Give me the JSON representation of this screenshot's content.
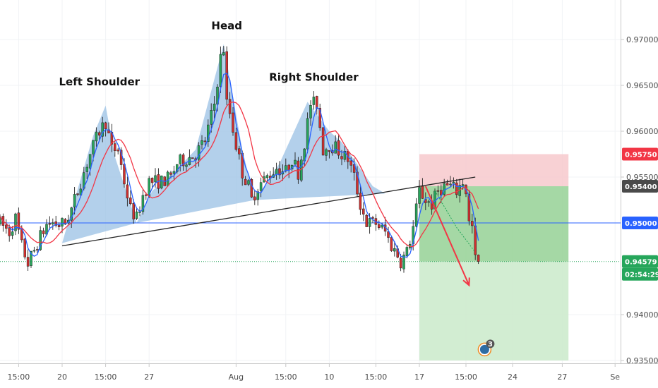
{
  "chart_data": {
    "type": "candlestick",
    "y_axis": {
      "range": [
        0.9348,
        0.9715
      ],
      "ticks": [
        {
          "value": 0.97,
          "label": "0.97000"
        },
        {
          "value": 0.965,
          "label": "0.96500"
        },
        {
          "value": 0.96,
          "label": "0.96000"
        },
        {
          "value": 0.955,
          "label": "0.95500"
        },
        {
          "value": 0.94,
          "label": "0.94000"
        },
        {
          "value": 0.935,
          "label": "0.93500"
        }
      ]
    },
    "x_axis": {
      "range": [
        0,
        200
      ],
      "ticks": [
        {
          "x": 6,
          "label": "15:00"
        },
        {
          "x": 20,
          "label": "20"
        },
        {
          "x": 34,
          "label": "15:00"
        },
        {
          "x": 48,
          "label": "27"
        },
        {
          "x": 76,
          "label": "Aug"
        },
        {
          "x": 92,
          "label": "15:00"
        },
        {
          "x": 106,
          "label": "10"
        },
        {
          "x": 121,
          "label": "15:00"
        },
        {
          "x": 135,
          "label": "17"
        },
        {
          "x": 150,
          "label": "15:00"
        },
        {
          "x": 165,
          "label": "24"
        },
        {
          "x": 181,
          "label": "27"
        },
        {
          "x": 198,
          "label": "Se"
        }
      ]
    },
    "price_badges": [
      {
        "value": 0.9575,
        "label": "0.95750",
        "color": "#f23645"
      },
      {
        "value": 0.954,
        "label": "0.95400",
        "color": "#4a4a4a"
      },
      {
        "value": 0.95,
        "label": "0.95000",
        "color": "#2962ff"
      },
      {
        "value": 0.94579,
        "label": "0.94579",
        "color": "#26a65b",
        "sublabel": "02:54:29"
      }
    ],
    "levels": {
      "support": 0.95,
      "current": 0.94579
    },
    "position": {
      "x_start": 135,
      "x_end": 183,
      "entry": 0.954,
      "stop": 0.9575,
      "target": 0.935,
      "fill_to": 0.94579,
      "colors": {
        "stop_zone": "#f7c9cc",
        "profit_zone": "#9bd49b",
        "profit_zone_light": "#cdebcd"
      }
    },
    "pattern": {
      "color": "#9dc3e6",
      "neckline": {
        "x0": 20,
        "y0": 0.9475,
        "x1": 153,
        "y1": 0.955
      },
      "left_shoulder": [
        [
          20,
          0.9478
        ],
        [
          24,
          0.9525
        ],
        [
          30,
          0.9595
        ],
        [
          34,
          0.9628
        ],
        [
          37,
          0.9572
        ],
        [
          44,
          0.95
        ]
      ],
      "head": [
        [
          44,
          0.95
        ],
        [
          49,
          0.9535
        ],
        [
          56,
          0.9555
        ],
        [
          63,
          0.958
        ],
        [
          72,
          0.9695
        ],
        [
          78,
          0.958
        ],
        [
          82,
          0.9525
        ]
      ],
      "right_shoulder": [
        [
          82,
          0.9525
        ],
        [
          90,
          0.9565
        ],
        [
          99,
          0.9632
        ],
        [
          106,
          0.96
        ],
        [
          110,
          0.9588
        ],
        [
          120,
          0.954
        ],
        [
          124,
          0.9532
        ]
      ]
    },
    "annotations": [
      {
        "x": 32,
        "y": 0.965,
        "label": "Left Shoulder"
      },
      {
        "x": 73,
        "y": 0.9711,
        "label": "Head"
      },
      {
        "x": 101,
        "y": 0.9655,
        "label": "Right Shoulder"
      }
    ],
    "arrow": {
      "x0": 137,
      "y0": 0.954,
      "x1": 151,
      "y1": 0.9432,
      "color": "#f23645"
    },
    "waypoints": [
      [
        0,
        0.95
      ],
      [
        3,
        0.949
      ],
      [
        5,
        0.9505
      ],
      [
        7,
        0.9475
      ],
      [
        9,
        0.9456
      ],
      [
        11,
        0.947
      ],
      [
        13,
        0.9485
      ],
      [
        15,
        0.9498
      ],
      [
        17,
        0.95
      ],
      [
        19,
        0.9498
      ],
      [
        21,
        0.95
      ],
      [
        23,
        0.9515
      ],
      [
        26,
        0.9545
      ],
      [
        29,
        0.9575
      ],
      [
        32,
        0.96
      ],
      [
        34,
        0.961
      ],
      [
        36,
        0.958
      ],
      [
        38,
        0.958
      ],
      [
        40,
        0.9545
      ],
      [
        42,
        0.9515
      ],
      [
        44,
        0.9505
      ],
      [
        46,
        0.953
      ],
      [
        48,
        0.9545
      ],
      [
        52,
        0.9545
      ],
      [
        55,
        0.955
      ],
      [
        57,
        0.9565
      ],
      [
        60,
        0.957
      ],
      [
        63,
        0.9575
      ],
      [
        66,
        0.959
      ],
      [
        69,
        0.963
      ],
      [
        71,
        0.968
      ],
      [
        72,
        0.969
      ],
      [
        73,
        0.963
      ],
      [
        74,
        0.962
      ],
      [
        76,
        0.9585
      ],
      [
        78,
        0.9555
      ],
      [
        80,
        0.954
      ],
      [
        81,
        0.9525
      ],
      [
        83,
        0.954
      ],
      [
        86,
        0.955
      ],
      [
        89,
        0.956
      ],
      [
        92,
        0.9556
      ],
      [
        94,
        0.957
      ],
      [
        96,
        0.9555
      ],
      [
        98,
        0.9588
      ],
      [
        100,
        0.963
      ],
      [
        102,
        0.963
      ],
      [
        104,
        0.958
      ],
      [
        106,
        0.9585
      ],
      [
        108,
        0.9582
      ],
      [
        110,
        0.9575
      ],
      [
        112,
        0.957
      ],
      [
        114,
        0.955
      ],
      [
        116,
        0.952
      ],
      [
        118,
        0.95
      ],
      [
        121,
        0.95
      ],
      [
        124,
        0.949
      ],
      [
        126,
        0.9475
      ],
      [
        128,
        0.9465
      ],
      [
        129,
        0.9458
      ],
      [
        131,
        0.9468
      ],
      [
        133,
        0.9495
      ],
      [
        135,
        0.9535
      ],
      [
        137,
        0.9525
      ],
      [
        139,
        0.952
      ],
      [
        141,
        0.9535
      ],
      [
        143,
        0.954
      ],
      [
        145,
        0.954
      ],
      [
        147,
        0.9535
      ],
      [
        149,
        0.9545
      ],
      [
        150,
        0.9535
      ],
      [
        151,
        0.95
      ],
      [
        152,
        0.9495
      ],
      [
        153,
        0.946
      ],
      [
        154,
        0.9458
      ]
    ],
    "moving_averages": [
      {
        "color": "#2962ff",
        "period": 4
      },
      {
        "color": "#f23645",
        "period": 10
      }
    ],
    "candle_colors": {
      "up": "#26a65b",
      "down": "#d32f2f"
    },
    "marker": {
      "x": 156,
      "y": 0.9362,
      "count": "3",
      "color": "#2e6da4",
      "ring": "#f08a24"
    }
  }
}
